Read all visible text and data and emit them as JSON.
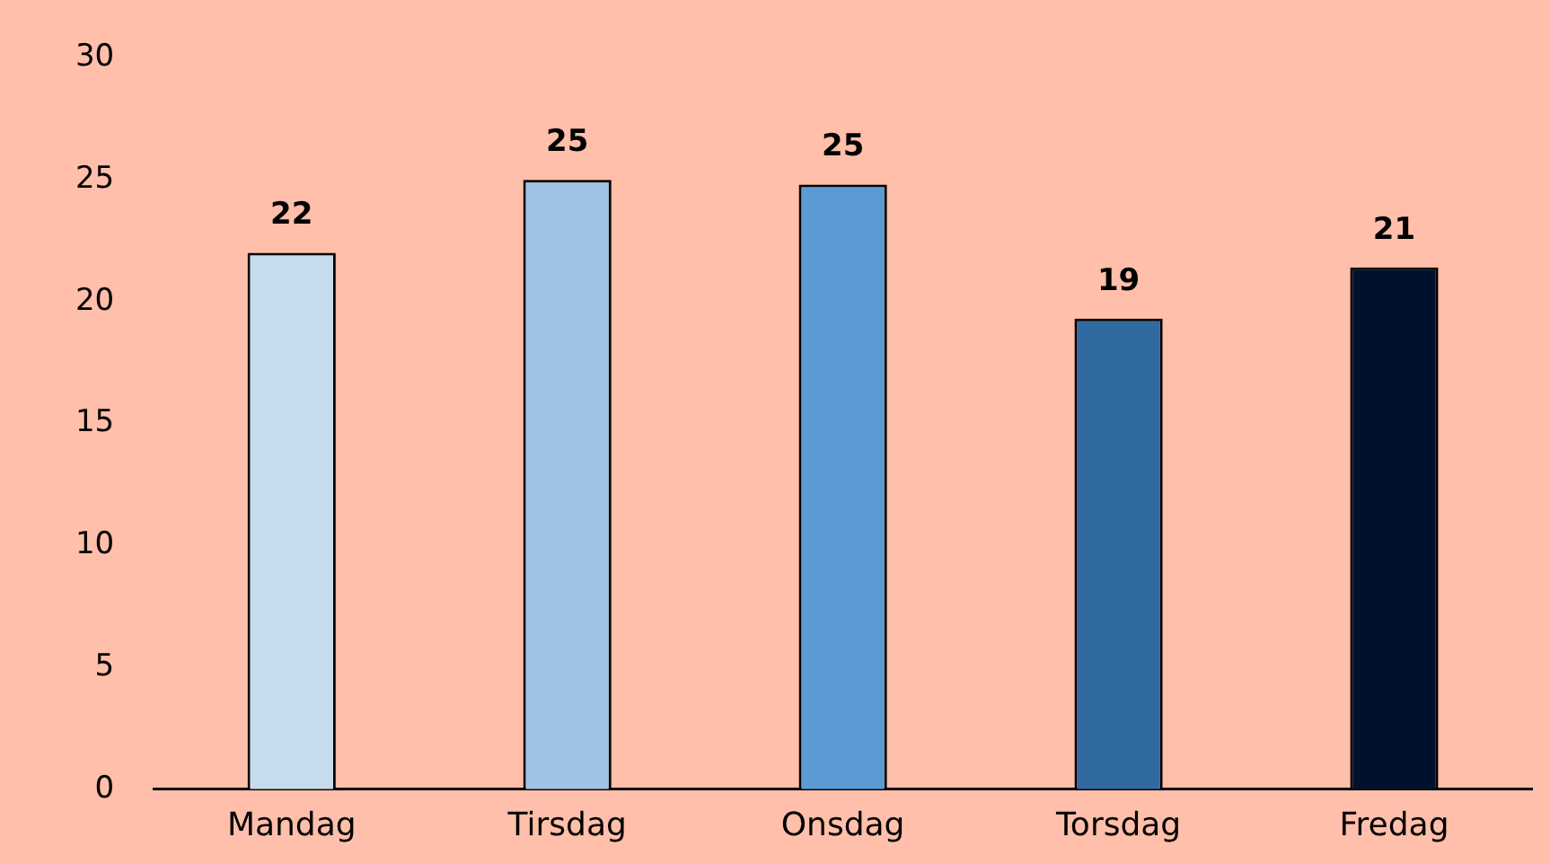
{
  "chart_data": {
    "type": "bar",
    "categories": [
      "Mandag",
      "Tirsdag",
      "Onsdag",
      "Torsdag",
      "Fredag"
    ],
    "values": [
      22,
      25,
      24.8,
      19.3,
      21.4
    ],
    "colors": [
      "#c5dcef",
      "#9dc3e6",
      "#5b9bd5",
      "#316aa0",
      "#00112e"
    ],
    "value_labels": [
      "22",
      "25",
      "25",
      "19",
      "21"
    ],
    "ylim": [
      0,
      30
    ],
    "yticks": [
      0,
      5,
      10,
      15,
      20,
      25,
      30
    ],
    "grid": false,
    "legend": false
  }
}
